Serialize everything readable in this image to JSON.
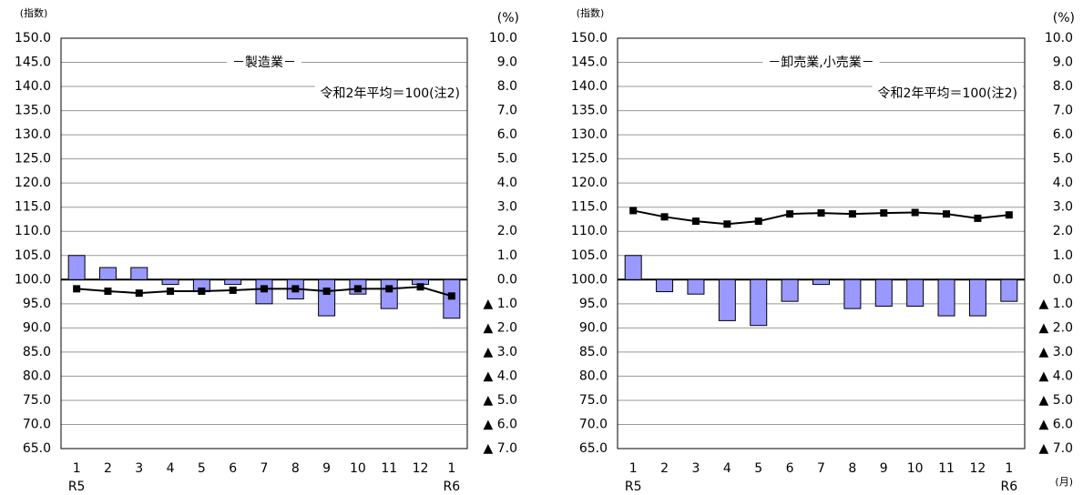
{
  "chart_data": [
    {
      "type": "combo",
      "title": "－製造業－",
      "note": "令和2年平均＝100(注2)",
      "ylabel": "(指数)",
      "y2label": "(%)",
      "categories": [
        "1",
        "2",
        "3",
        "4",
        "5",
        "6",
        "7",
        "8",
        "9",
        "10",
        "11",
        "12",
        "1"
      ],
      "year_labels": [
        "R5",
        null,
        null,
        null,
        null,
        null,
        null,
        null,
        null,
        null,
        null,
        null,
        "R6"
      ],
      "series": [
        {
          "type": "bar",
          "axis": "y2",
          "color": "#9999ff",
          "values": [
            1.0,
            0.5,
            0.5,
            -0.2,
            -0.5,
            -0.2,
            -1.0,
            -0.8,
            -1.5,
            -0.6,
            -1.2,
            -0.2,
            -1.6
          ]
        },
        {
          "type": "line",
          "color": "#000000",
          "values": [
            98.1,
            97.6,
            97.2,
            97.6,
            97.6,
            97.8,
            98.1,
            98.1,
            97.6,
            98.1,
            98.1,
            98.5,
            96.6
          ]
        }
      ],
      "ylim": [
        65,
        150
      ],
      "yticks": [
        {
          "value": 65,
          "label": "65.0"
        },
        {
          "value": 70,
          "label": "70.0"
        },
        {
          "value": 75,
          "label": "75.0"
        },
        {
          "value": 80,
          "label": "80.0"
        },
        {
          "value": 85,
          "label": "85.0"
        },
        {
          "value": 90,
          "label": "90.0"
        },
        {
          "value": 95,
          "label": "95.0"
        },
        {
          "value": 100,
          "label": "100.0"
        },
        {
          "value": 105,
          "label": "105.0"
        },
        {
          "value": 110,
          "label": "110.0"
        },
        {
          "value": 115,
          "label": "115.0"
        },
        {
          "value": 120,
          "label": "120.0"
        },
        {
          "value": 125,
          "label": "125.0"
        },
        {
          "value": 130,
          "label": "130.0"
        },
        {
          "value": 135,
          "label": "135.0"
        },
        {
          "value": 140,
          "label": "140.0"
        },
        {
          "value": 145,
          "label": "145.0"
        },
        {
          "value": 150,
          "label": "150.0"
        }
      ],
      "y2lim": [
        -7,
        10
      ],
      "y2ticks": [
        {
          "value": -7,
          "label": "▲ 7.0"
        },
        {
          "value": -6,
          "label": "▲ 6.0"
        },
        {
          "value": -5,
          "label": "▲ 5.0"
        },
        {
          "value": -4,
          "label": "▲ 4.0"
        },
        {
          "value": -3,
          "label": "▲ 3.0"
        },
        {
          "value": -2,
          "label": "▲ 2.0"
        },
        {
          "value": -1,
          "label": "▲ 1.0"
        },
        {
          "value": 0,
          "label": "0.0"
        },
        {
          "value": 1,
          "label": "1.0"
        },
        {
          "value": 2,
          "label": "2.0"
        },
        {
          "value": 3,
          "label": "3.0"
        },
        {
          "value": 4,
          "label": "4.0"
        },
        {
          "value": 5,
          "label": "5.0"
        },
        {
          "value": 6,
          "label": "6.0"
        },
        {
          "value": 7,
          "label": "7.0"
        },
        {
          "value": 8,
          "label": "8.0"
        },
        {
          "value": 9,
          "label": "9.0"
        },
        {
          "value": 10,
          "label": "10.0"
        }
      ],
      "grid": true
    },
    {
      "type": "combo",
      "title": "－卸売業,小売業－",
      "note": "令和2年平均＝100(注2)",
      "ylabel": "(指数)",
      "y2label": "(%)",
      "xlabel": "(月)",
      "categories": [
        "1",
        "2",
        "3",
        "4",
        "5",
        "6",
        "7",
        "8",
        "9",
        "10",
        "11",
        "12",
        "1"
      ],
      "year_labels": [
        "R5",
        null,
        null,
        null,
        null,
        null,
        null,
        null,
        null,
        null,
        null,
        null,
        "R6"
      ],
      "series": [
        {
          "type": "bar",
          "axis": "y2",
          "color": "#9999ff",
          "values": [
            1.0,
            -0.5,
            -0.6,
            -1.7,
            -1.9,
            -0.9,
            -0.2,
            -1.2,
            -1.1,
            -1.1,
            -1.5,
            -1.5,
            -0.9
          ]
        },
        {
          "type": "line",
          "color": "#000000",
          "values": [
            114.3,
            113.0,
            112.1,
            111.5,
            112.1,
            113.6,
            113.8,
            113.6,
            113.8,
            113.9,
            113.6,
            112.7,
            113.4
          ]
        }
      ],
      "ylim": [
        65,
        150
      ],
      "yticks": [
        {
          "value": 65,
          "label": "65.0"
        },
        {
          "value": 70,
          "label": "70.0"
        },
        {
          "value": 75,
          "label": "75.0"
        },
        {
          "value": 80,
          "label": "80.0"
        },
        {
          "value": 85,
          "label": "85.0"
        },
        {
          "value": 90,
          "label": "90.0"
        },
        {
          "value": 95,
          "label": "95.0"
        },
        {
          "value": 100,
          "label": "100.0"
        },
        {
          "value": 105,
          "label": "105.0"
        },
        {
          "value": 110,
          "label": "110.0"
        },
        {
          "value": 115,
          "label": "115.0"
        },
        {
          "value": 120,
          "label": "120.0"
        },
        {
          "value": 125,
          "label": "125.0"
        },
        {
          "value": 130,
          "label": "130.0"
        },
        {
          "value": 135,
          "label": "135.0"
        },
        {
          "value": 140,
          "label": "140.0"
        },
        {
          "value": 145,
          "label": "145.0"
        },
        {
          "value": 150,
          "label": "150.0"
        }
      ],
      "y2lim": [
        -7,
        10
      ],
      "y2ticks": [
        {
          "value": -7,
          "label": "▲ 7.0"
        },
        {
          "value": -6,
          "label": "▲ 6.0"
        },
        {
          "value": -5,
          "label": "▲ 5.0"
        },
        {
          "value": -4,
          "label": "▲ 4.0"
        },
        {
          "value": -3,
          "label": "▲ 3.0"
        },
        {
          "value": -2,
          "label": "▲ 2.0"
        },
        {
          "value": -1,
          "label": "▲ 1.0"
        },
        {
          "value": 0,
          "label": "0.0"
        },
        {
          "value": 1,
          "label": "1.0"
        },
        {
          "value": 2,
          "label": "2.0"
        },
        {
          "value": 3,
          "label": "3.0"
        },
        {
          "value": 4,
          "label": "4.0"
        },
        {
          "value": 5,
          "label": "5.0"
        },
        {
          "value": 6,
          "label": "6.0"
        },
        {
          "value": 7,
          "label": "7.0"
        },
        {
          "value": 8,
          "label": "8.0"
        },
        {
          "value": 9,
          "label": "9.0"
        },
        {
          "value": 10,
          "label": "10.0"
        }
      ],
      "grid": true
    }
  ]
}
